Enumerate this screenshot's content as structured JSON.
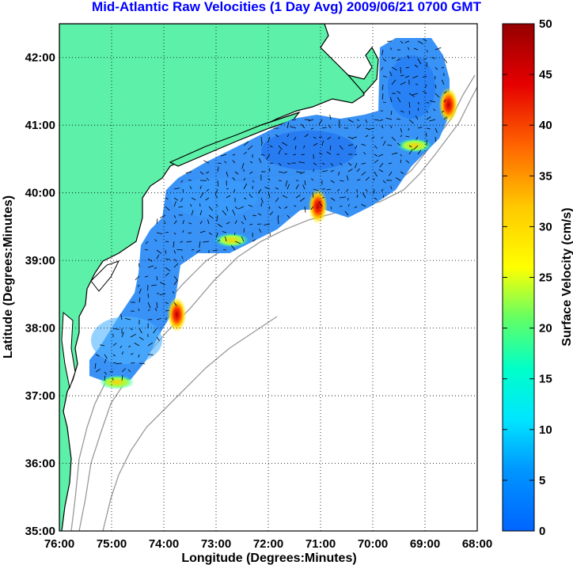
{
  "title": "Mid-Atlantic Raw Velocities (1 Day Avg) 2009/06/21 0700 GMT",
  "map": {
    "xlabel": "Longitude (Degrees:Minutes)",
    "ylabel": "Latitude (Degrees:Minutes)",
    "lon_range": [
      -76,
      -68
    ],
    "lat_range": [
      35,
      42.5
    ],
    "lon_ticks": [
      "76:00",
      "75:00",
      "74:00",
      "73:00",
      "72:00",
      "71:00",
      "70:00",
      "69:00",
      "68:00"
    ],
    "lat_ticks": [
      "35:00",
      "36:00",
      "37:00",
      "38:00",
      "39:00",
      "40:00",
      "41:00",
      "42:00"
    ],
    "grid": "dotted",
    "land_color": "#5cf0a8",
    "coastline_color": "#000000",
    "bathymetry_color": "#999999"
  },
  "colorbar": {
    "label": "Surface Velocity (cm/s)",
    "min": 0,
    "max": 50,
    "ticks": [
      "0",
      "5",
      "10",
      "15",
      "20",
      "25",
      "30",
      "35",
      "40",
      "45",
      "50"
    ],
    "colormap": [
      "#0064ff",
      "#00c8ff",
      "#00ffe6",
      "#64ff64",
      "#ffff00",
      "#ffc800",
      "#ff6400",
      "#e60000",
      "#960000"
    ]
  },
  "coverage": {
    "typical_speed_cm_s": 5,
    "hotspots": [
      {
        "lon": -73.75,
        "lat": 38.2,
        "speed_cm_s": 48
      },
      {
        "lon": -71.05,
        "lat": 39.8,
        "speed_cm_s": 45
      },
      {
        "lon": -68.55,
        "lat": 41.3,
        "speed_cm_s": 48
      },
      {
        "lon": -72.7,
        "lat": 39.3,
        "speed_cm_s": 25
      },
      {
        "lon": -69.2,
        "lat": 40.7,
        "speed_cm_s": 30
      },
      {
        "lon": -74.9,
        "lat": 37.2,
        "speed_cm_s": 25
      }
    ]
  }
}
